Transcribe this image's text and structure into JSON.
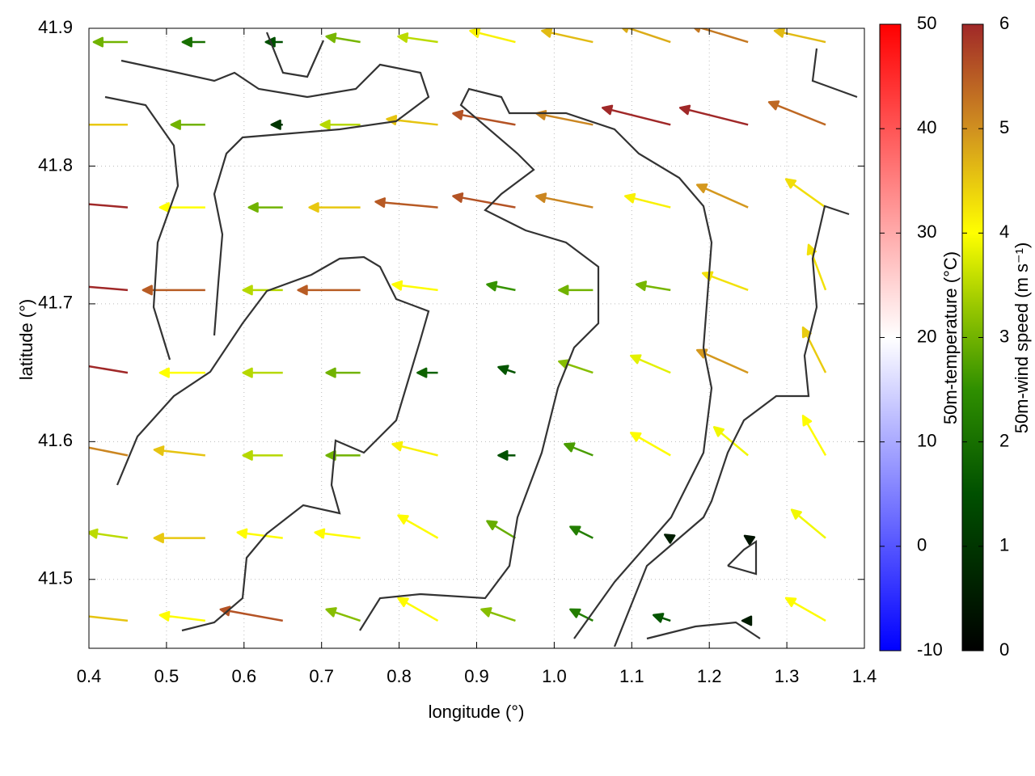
{
  "chart_data": {
    "type": "vector",
    "xlabel": "longitude (°)",
    "ylabel": "latitude (°)",
    "xlim": [
      0.4,
      1.4
    ],
    "ylim": [
      41.45,
      41.9
    ],
    "xticks": [
      0.4,
      0.5,
      0.6,
      0.7,
      0.8,
      0.9,
      {
        "value": 1,
        "label": "1.0"
      },
      1.1,
      1.2,
      1.3,
      1.4
    ],
    "yticks": [
      41.5,
      41.6,
      41.7,
      41.8,
      41.9
    ],
    "grid": true,
    "vectors": {
      "x": [
        0.45,
        0.55,
        0.65,
        0.75,
        0.85,
        0.95,
        1.05,
        1.15,
        1.25,
        1.35,
        0.45,
        0.55,
        0.65,
        0.75,
        0.85,
        0.95,
        1.05,
        1.15,
        1.25,
        1.35,
        0.45,
        0.55,
        0.65,
        0.75,
        0.85,
        0.95,
        1.05,
        1.15,
        1.25,
        1.35,
        0.45,
        0.55,
        0.65,
        0.75,
        0.85,
        0.95,
        1.05,
        1.15,
        1.25,
        1.35,
        0.45,
        0.55,
        0.65,
        0.75,
        0.85,
        0.95,
        1.05,
        1.15,
        1.25,
        1.35,
        0.45,
        0.55,
        0.65,
        0.75,
        0.85,
        0.95,
        1.05,
        1.15,
        1.25,
        1.35,
        0.45,
        0.55,
        0.65,
        0.75,
        0.85,
        0.95,
        1.05,
        1.15,
        1.25,
        1.35,
        0.45,
        0.55,
        0.65,
        0.75,
        0.85,
        0.95,
        1.05,
        1.15,
        1.25,
        1.35
      ],
      "y": [
        41.47,
        41.47,
        41.47,
        41.47,
        41.47,
        41.47,
        41.47,
        41.47,
        41.47,
        41.47,
        41.53,
        41.53,
        41.53,
        41.53,
        41.53,
        41.53,
        41.53,
        41.53,
        41.53,
        41.53,
        41.59,
        41.59,
        41.59,
        41.59,
        41.59,
        41.59,
        41.59,
        41.59,
        41.59,
        41.59,
        41.65,
        41.65,
        41.65,
        41.65,
        41.65,
        41.65,
        41.65,
        41.65,
        41.65,
        41.65,
        41.71,
        41.71,
        41.71,
        41.71,
        41.71,
        41.71,
        41.71,
        41.71,
        41.71,
        41.71,
        41.77,
        41.77,
        41.77,
        41.77,
        41.77,
        41.77,
        41.77,
        41.77,
        41.77,
        41.77,
        41.83,
        41.83,
        41.83,
        41.83,
        41.83,
        41.83,
        41.83,
        41.83,
        41.83,
        41.83,
        41.89,
        41.89,
        41.89,
        41.89,
        41.89,
        41.89,
        41.89,
        41.89,
        41.89,
        41.89
      ],
      "u": [
        -4.5,
        -4,
        -5.5,
        -3,
        -3.5,
        -3,
        -2,
        -1.5,
        -0.5,
        -3.5,
        -3.5,
        -4.5,
        -4,
        -4,
        -3.5,
        -2.5,
        -2,
        -0.5,
        -0.3,
        -3,
        -5,
        -4.5,
        -3.5,
        -3,
        -4,
        -1.5,
        -2.5,
        -3.5,
        -3,
        -2,
        -6,
        -4,
        -3.5,
        -3,
        -1.8,
        -1.5,
        -3,
        -3.5,
        -4.5,
        -2,
        -6,
        -5.5,
        -3.5,
        -5.5,
        -4,
        -2.5,
        -3,
        -3,
        -4,
        -1.5,
        -6,
        -4,
        -3,
        -4.5,
        -5.5,
        -5.5,
        -5,
        -4,
        -4.5,
        -3.5,
        -4.5,
        -3,
        -1,
        -3.5,
        -4.5,
        -5.5,
        -5,
        -6,
        -6,
        -5,
        -3,
        -2,
        -1.5,
        -3,
        -3.5,
        -4,
        -4.5,
        -4.5,
        -5,
        -4.5
      ],
      "v": [
        0.5,
        0.5,
        1,
        1,
        2,
        1,
        1,
        0.5,
        0,
        2,
        0.5,
        0,
        0.5,
        0.5,
        2,
        1.5,
        1,
        0.3,
        0.2,
        2.5,
        1,
        0.5,
        0,
        0,
        1,
        0,
        1,
        2,
        2.5,
        3.5,
        1,
        0,
        0,
        0,
        0,
        0.5,
        1,
        1.5,
        2,
        4,
        0.5,
        0,
        0,
        0,
        0.5,
        0.5,
        0,
        0.5,
        1.5,
        4,
        0.5,
        0,
        0,
        0,
        0.5,
        1,
        1,
        1,
        2,
        2.5,
        0,
        0,
        0,
        0,
        0.5,
        1,
        1,
        1.5,
        1.5,
        2,
        0,
        0,
        0,
        0.5,
        0.5,
        1,
        1,
        1.5,
        1.5,
        1
      ]
    },
    "colorbars": [
      {
        "label": "50m-temperature (°C)",
        "lim": [
          -10,
          50
        ],
        "ticks": [
          -10,
          0,
          10,
          20,
          30,
          40,
          50
        ],
        "colormap": [
          {
            "value": -10,
            "color": "#0000ff"
          },
          {
            "value": 20,
            "color": "#ffffff"
          },
          {
            "value": 50,
            "color": "#ff0000"
          }
        ]
      },
      {
        "label": "50m-wind speed (m s⁻¹)",
        "lim": [
          0,
          6
        ],
        "ticks": [
          0,
          1,
          2,
          3,
          4,
          5,
          6
        ],
        "colormap": [
          {
            "value": 0,
            "color": "#000000"
          },
          {
            "value": 1.5,
            "color": "#005000"
          },
          {
            "value": 2.5,
            "color": "#2f8f00"
          },
          {
            "value": 3.3,
            "color": "#99c800"
          },
          {
            "value": 4,
            "color": "#ffff00"
          },
          {
            "value": 5,
            "color": "#d09020"
          },
          {
            "value": 6,
            "color": "#a02828"
          }
        ]
      }
    ]
  }
}
